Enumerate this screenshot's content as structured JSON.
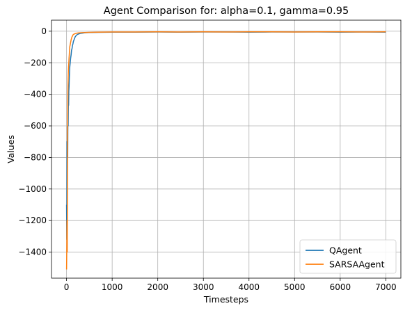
{
  "chart_data": {
    "type": "line",
    "title": "Agent Comparison for: alpha=0.1, gamma=0.95",
    "xlabel": "Timesteps",
    "ylabel": "Values",
    "xlim": [
      -330,
      7330
    ],
    "ylim": [
      -1565,
      70
    ],
    "xticks": [
      0,
      1000,
      2000,
      3000,
      4000,
      5000,
      6000,
      7000
    ],
    "yticks": [
      0,
      -200,
      -400,
      -600,
      -800,
      -1000,
      -1200,
      -1400
    ],
    "grid": true,
    "legend_position": "lower-right",
    "series": [
      {
        "name": "QAgent",
        "color": "#1f77b4",
        "x": [
          0,
          5,
          10,
          15,
          20,
          25,
          30,
          35,
          40,
          45,
          50,
          55,
          60,
          65,
          70,
          80,
          90,
          100,
          110,
          120,
          130,
          140,
          150,
          170,
          190,
          210,
          230,
          260,
          300,
          350,
          400,
          500,
          700,
          1000,
          1500,
          2000,
          2500,
          3000,
          3500,
          4000,
          4500,
          5000,
          5500,
          6000,
          6500,
          7000
        ],
        "y": [
          -1100,
          -1320,
          -700,
          -950,
          -600,
          -800,
          -520,
          -600,
          -450,
          -470,
          -380,
          -350,
          -300,
          -260,
          -230,
          -200,
          -170,
          -150,
          -120,
          -110,
          -90,
          -80,
          -65,
          -50,
          -35,
          -28,
          -22,
          -18,
          -14,
          -12,
          -10,
          -8,
          -7,
          -6,
          -6,
          -5,
          -6,
          -5,
          -5,
          -6,
          -5,
          -5,
          -5,
          -6,
          -5,
          -6
        ]
      },
      {
        "name": "SARSAAgent",
        "color": "#ff7f0e",
        "x": [
          0,
          5,
          10,
          15,
          20,
          25,
          30,
          35,
          40,
          45,
          50,
          55,
          60,
          65,
          70,
          80,
          90,
          100,
          110,
          120,
          130,
          140,
          150,
          170,
          190,
          210,
          230,
          260,
          300,
          350,
          400,
          500,
          700,
          1000,
          1500,
          2000,
          2500,
          3000,
          3500,
          4000,
          4500,
          5000,
          5500,
          6000,
          6500,
          7000
        ],
        "y": [
          -1510,
          -1390,
          -1200,
          -1400,
          -900,
          -600,
          -380,
          -300,
          -250,
          -220,
          -200,
          -170,
          -150,
          -120,
          -100,
          -85,
          -70,
          -55,
          -45,
          -35,
          -30,
          -25,
          -20,
          -18,
          -15,
          -14,
          -12,
          -11,
          -10,
          -9,
          -8,
          -7,
          -6,
          -5,
          -5,
          -4,
          -5,
          -4,
          -5,
          -4,
          -4,
          -5,
          -4,
          -4,
          -5,
          -4
        ]
      }
    ]
  }
}
